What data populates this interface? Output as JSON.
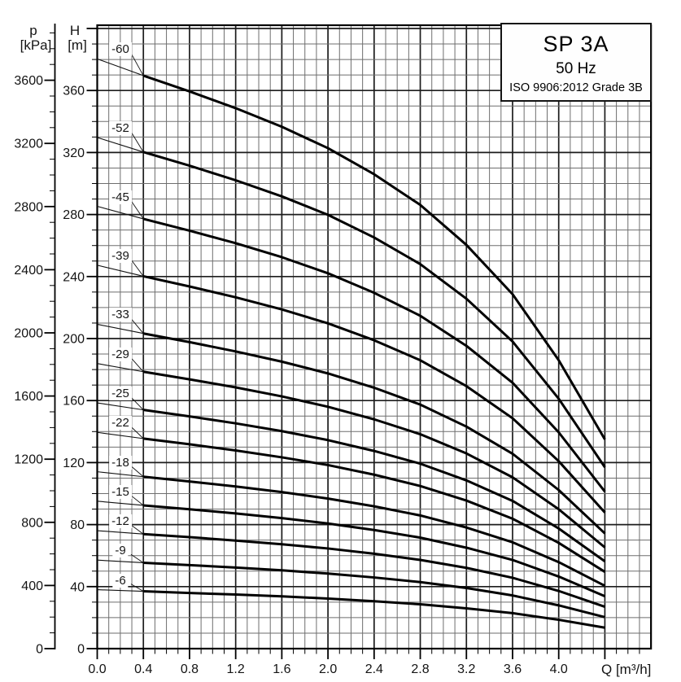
{
  "title_box": {
    "model": "SP 3A",
    "frequency": "50 Hz",
    "standard": "ISO 9906:2012 Grade 3B"
  },
  "axes": {
    "pressure": {
      "name": "p",
      "unit": "[kPa]",
      "labels": [
        "0",
        "400",
        "800",
        "1200",
        "1600",
        "2000",
        "2400",
        "2800",
        "3200",
        "3600"
      ],
      "major_step_kpa": 400,
      "minor_step_kpa": 100
    },
    "head": {
      "name": "H",
      "unit": "[m]",
      "labels": [
        "0",
        "40",
        "80",
        "120",
        "160",
        "200",
        "240",
        "280",
        "320",
        "360"
      ],
      "major_step_m": 40,
      "minor_step_m": 10
    },
    "flow": {
      "name": "Q",
      "unit": "[m³/h]",
      "label": "Q [m³/h]",
      "labels": [
        "0.0",
        "0.4",
        "0.8",
        "1.2",
        "1.6",
        "2.0",
        "2.4",
        "2.8",
        "3.2",
        "3.6",
        "4.0"
      ],
      "major_step": 0.4,
      "minor_step": 0.1
    }
  },
  "chart_data": {
    "type": "line",
    "title": "SP 3A 50 Hz pump performance curves (head vs flow per stage count)",
    "xlabel": "Q [m³/h]",
    "ylabel": "H [m]",
    "ylabel_secondary": "p [kPa]",
    "xlim": [
      0,
      4.8
    ],
    "ylim": [
      0,
      402
    ],
    "pressure_lim_kpa": [
      0,
      3950
    ],
    "grid": "on",
    "thick_range_q": [
      0.4,
      4.4
    ],
    "x": [
      0.0,
      0.4,
      0.8,
      1.2,
      1.6,
      2.0,
      2.4,
      2.8,
      3.2,
      3.6,
      4.0,
      4.4
    ],
    "series": [
      {
        "name": "-60",
        "stages": 60,
        "values": [
          380.4,
          369.6,
          359.4,
          348.6,
          336.6,
          322.8,
          306.0,
          286.2,
          260.4,
          228.6,
          186.0,
          135.0
        ]
      },
      {
        "name": "-52",
        "stages": 52,
        "values": [
          329.7,
          320.3,
          311.5,
          302.1,
          291.7,
          279.8,
          265.2,
          248.0,
          225.7,
          198.1,
          161.2,
          117.0
        ]
      },
      {
        "name": "-45",
        "stages": 45,
        "values": [
          285.3,
          277.2,
          269.6,
          261.5,
          252.5,
          242.1,
          229.5,
          214.7,
          195.3,
          171.5,
          139.5,
          101.3
        ]
      },
      {
        "name": "-39",
        "stages": 39,
        "values": [
          247.3,
          240.2,
          233.6,
          226.6,
          218.8,
          209.8,
          198.9,
          186.0,
          169.3,
          148.6,
          120.9,
          87.8
        ]
      },
      {
        "name": "-33",
        "stages": 33,
        "values": [
          209.2,
          203.3,
          197.7,
          191.7,
          185.1,
          177.5,
          168.3,
          157.4,
          143.2,
          125.7,
          102.3,
          74.3
        ]
      },
      {
        "name": "-29",
        "stages": 29,
        "values": [
          183.9,
          178.6,
          173.7,
          168.5,
          162.7,
          156.0,
          147.9,
          138.3,
          125.9,
          110.5,
          89.9,
          65.3
        ]
      },
      {
        "name": "-25",
        "stages": 25,
        "values": [
          158.5,
          154.0,
          149.8,
          145.3,
          140.3,
          134.5,
          127.5,
          119.3,
          108.5,
          95.3,
          77.5,
          56.3
        ]
      },
      {
        "name": "-22",
        "stages": 22,
        "values": [
          139.5,
          135.5,
          131.8,
          127.8,
          123.4,
          118.4,
          112.2,
          104.9,
          95.5,
          83.8,
          68.2,
          49.5
        ]
      },
      {
        "name": "-18",
        "stages": 18,
        "values": [
          114.1,
          110.9,
          107.8,
          104.6,
          101.0,
          96.8,
          91.8,
          85.9,
          78.1,
          68.6,
          55.8,
          40.5
        ]
      },
      {
        "name": "-15",
        "stages": 15,
        "values": [
          95.1,
          92.4,
          89.9,
          87.2,
          84.2,
          80.7,
          76.5,
          71.6,
          65.1,
          57.2,
          46.5,
          33.8
        ]
      },
      {
        "name": "-12",
        "stages": 12,
        "values": [
          76.1,
          73.9,
          71.9,
          69.7,
          67.3,
          64.6,
          61.2,
          57.2,
          52.1,
          45.7,
          37.2,
          27.0
        ]
      },
      {
        "name": "-9",
        "stages": 9,
        "values": [
          57.1,
          55.4,
          53.9,
          52.3,
          50.5,
          48.4,
          45.9,
          42.9,
          39.1,
          34.3,
          27.9,
          20.3
        ]
      },
      {
        "name": "-6",
        "stages": 6,
        "values": [
          38.0,
          37.0,
          35.9,
          34.9,
          33.7,
          32.3,
          30.6,
          28.6,
          26.0,
          22.9,
          18.6,
          13.5
        ]
      }
    ]
  }
}
